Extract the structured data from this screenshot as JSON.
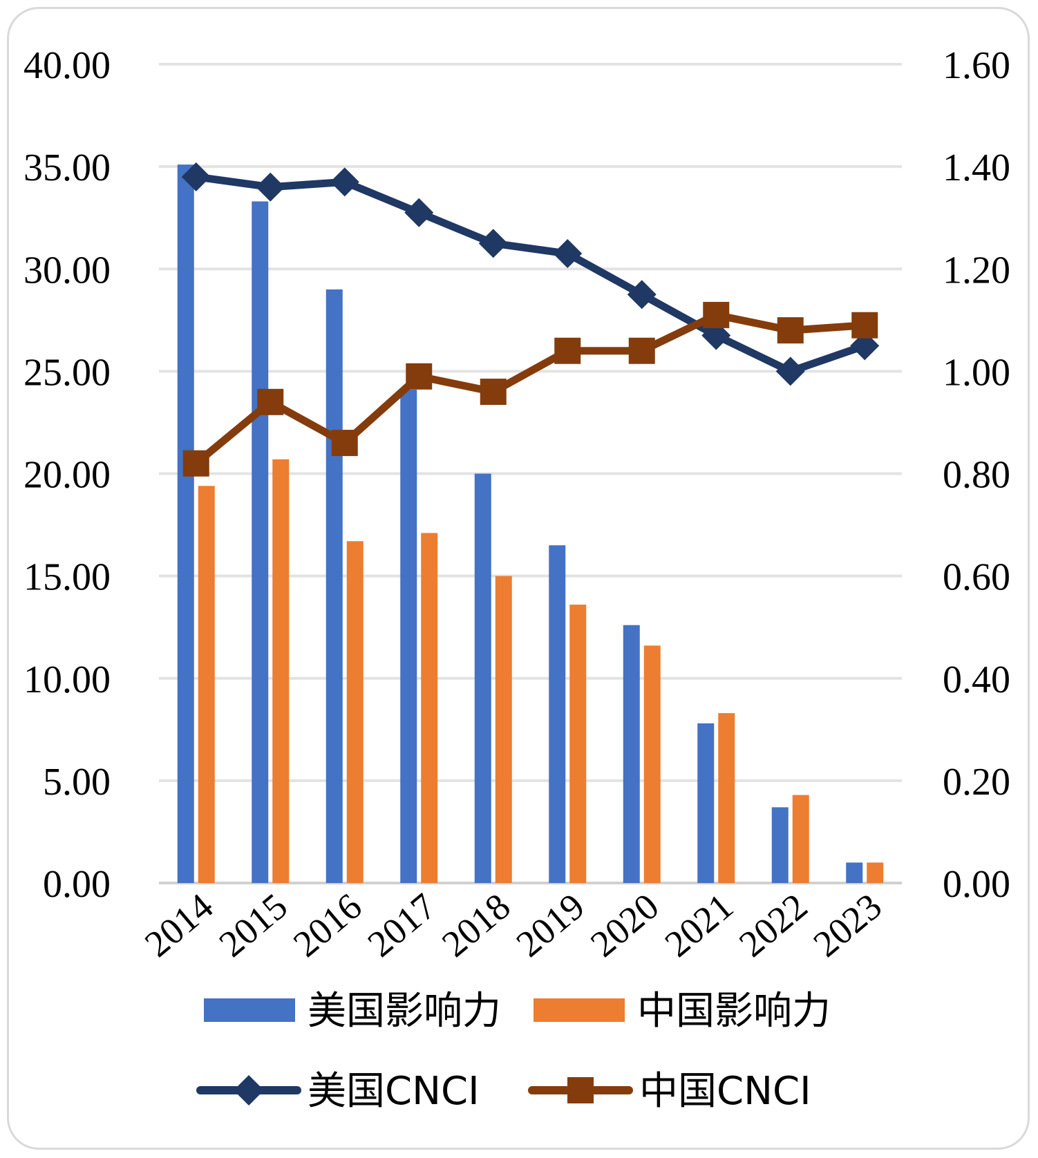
{
  "chart_data": {
    "type": "bar",
    "title": "",
    "xlabel": "",
    "ylabel": "",
    "categories": [
      "2014",
      "2015",
      "2016",
      "2017",
      "2018",
      "2019",
      "2020",
      "2021",
      "2022",
      "2023"
    ],
    "y_left": {
      "range": [
        0,
        40
      ],
      "ticks": [
        0,
        5,
        10,
        15,
        20,
        25,
        30,
        35,
        40
      ],
      "tick_labels": [
        "0.00",
        "5.00",
        "10.00",
        "15.00",
        "20.00",
        "25.00",
        "30.00",
        "35.00",
        "40.00"
      ]
    },
    "y_right": {
      "range": [
        0,
        1.6
      ],
      "ticks": [
        0,
        0.2,
        0.4,
        0.6,
        0.8,
        1.0,
        1.2,
        1.4,
        1.6
      ],
      "tick_labels": [
        "0.00",
        "0.20",
        "0.40",
        "0.60",
        "0.80",
        "1.00",
        "1.20",
        "1.40",
        "1.60"
      ]
    },
    "grid": true,
    "legend_position": "bottom",
    "series": [
      {
        "name": "美国影响力",
        "kind": "bar",
        "axis": "left",
        "color": "#4472C4",
        "values": [
          35.1,
          33.3,
          29.0,
          24.1,
          20.0,
          16.5,
          12.6,
          7.8,
          3.7,
          1.0
        ]
      },
      {
        "name": "中国影响力",
        "kind": "bar",
        "axis": "left",
        "color": "#ED7D31",
        "values": [
          19.4,
          20.7,
          16.7,
          17.1,
          15.0,
          13.6,
          11.6,
          8.3,
          4.3,
          1.0
        ]
      },
      {
        "name": "美国CNCI",
        "kind": "line",
        "marker": "diamond",
        "axis": "right",
        "color": "#1F3864",
        "values": [
          1.38,
          1.36,
          1.37,
          1.31,
          1.25,
          1.23,
          1.15,
          1.07,
          1.0,
          1.05
        ]
      },
      {
        "name": "中国CNCI",
        "kind": "line",
        "marker": "square",
        "axis": "right",
        "color": "#843C0C",
        "values": [
          0.82,
          0.94,
          0.86,
          0.99,
          0.96,
          1.04,
          1.04,
          1.11,
          1.08,
          1.09
        ]
      }
    ]
  }
}
